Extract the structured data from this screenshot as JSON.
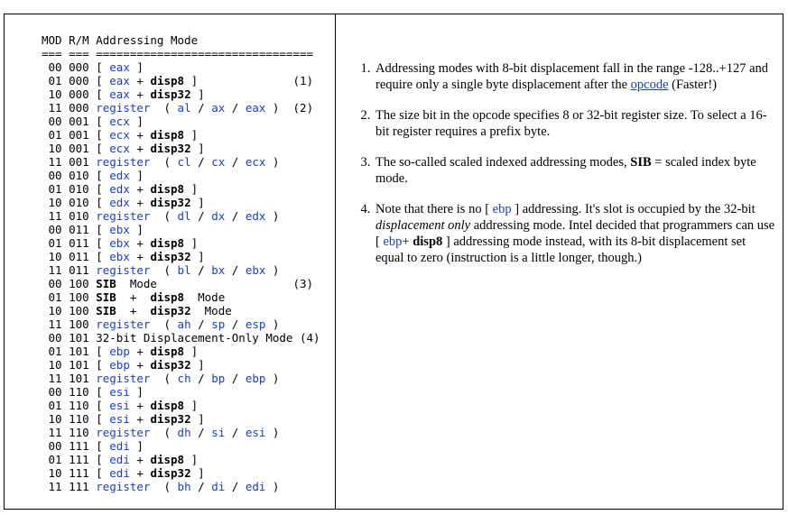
{
  "table": {
    "header": "MOD R/M Addressing Mode",
    "separator": "=== === ================================",
    "rows": [
      {
        "mod": "00",
        "rm": "000",
        "parts": [
          [
            "t",
            "[ "
          ],
          [
            "k",
            "eax"
          ],
          [
            "t",
            " ]"
          ]
        ],
        "note": ""
      },
      {
        "mod": "01",
        "rm": "000",
        "parts": [
          [
            "t",
            "[ "
          ],
          [
            "k",
            "eax"
          ],
          [
            "t",
            " + "
          ],
          [
            "b",
            "disp8"
          ],
          [
            "t",
            " ]"
          ]
        ],
        "note": "(1)"
      },
      {
        "mod": "10",
        "rm": "000",
        "parts": [
          [
            "t",
            "[ "
          ],
          [
            "k",
            "eax"
          ],
          [
            "t",
            " + "
          ],
          [
            "b",
            "disp32"
          ],
          [
            "t",
            " ]"
          ]
        ],
        "note": ""
      },
      {
        "mod": "11",
        "rm": "000",
        "parts": [
          [
            "k",
            "register"
          ],
          [
            "t",
            "  ( "
          ],
          [
            "k",
            "al"
          ],
          [
            "t",
            " / "
          ],
          [
            "k",
            "ax"
          ],
          [
            "t",
            " / "
          ],
          [
            "k",
            "eax"
          ],
          [
            "t",
            " )"
          ]
        ],
        "note": "(2)"
      },
      {
        "mod": "00",
        "rm": "001",
        "parts": [
          [
            "t",
            "[ "
          ],
          [
            "k",
            "ecx"
          ],
          [
            "t",
            " ]"
          ]
        ],
        "note": ""
      },
      {
        "mod": "01",
        "rm": "001",
        "parts": [
          [
            "t",
            "[ "
          ],
          [
            "k",
            "ecx"
          ],
          [
            "t",
            " + "
          ],
          [
            "b",
            "disp8"
          ],
          [
            "t",
            " ]"
          ]
        ],
        "note": ""
      },
      {
        "mod": "10",
        "rm": "001",
        "parts": [
          [
            "t",
            "[ "
          ],
          [
            "k",
            "ecx"
          ],
          [
            "t",
            " + "
          ],
          [
            "b",
            "disp32"
          ],
          [
            "t",
            " ]"
          ]
        ],
        "note": ""
      },
      {
        "mod": "11",
        "rm": "001",
        "parts": [
          [
            "k",
            "register"
          ],
          [
            "t",
            "  ( "
          ],
          [
            "k",
            "cl"
          ],
          [
            "t",
            " / "
          ],
          [
            "k",
            "cx"
          ],
          [
            "t",
            " / "
          ],
          [
            "k",
            "ecx"
          ],
          [
            "t",
            " )"
          ]
        ],
        "note": ""
      },
      {
        "mod": "00",
        "rm": "010",
        "parts": [
          [
            "t",
            "[ "
          ],
          [
            "k",
            "edx"
          ],
          [
            "t",
            " ]"
          ]
        ],
        "note": ""
      },
      {
        "mod": "01",
        "rm": "010",
        "parts": [
          [
            "t",
            "[ "
          ],
          [
            "k",
            "edx"
          ],
          [
            "t",
            " + "
          ],
          [
            "b",
            "disp8"
          ],
          [
            "t",
            " ]"
          ]
        ],
        "note": ""
      },
      {
        "mod": "10",
        "rm": "010",
        "parts": [
          [
            "t",
            "[ "
          ],
          [
            "k",
            "edx"
          ],
          [
            "t",
            " + "
          ],
          [
            "b",
            "disp32"
          ],
          [
            "t",
            " ]"
          ]
        ],
        "note": ""
      },
      {
        "mod": "11",
        "rm": "010",
        "parts": [
          [
            "k",
            "register"
          ],
          [
            "t",
            "  ( "
          ],
          [
            "k",
            "dl"
          ],
          [
            "t",
            " / "
          ],
          [
            "k",
            "dx"
          ],
          [
            "t",
            " / "
          ],
          [
            "k",
            "edx"
          ],
          [
            "t",
            " )"
          ]
        ],
        "note": ""
      },
      {
        "mod": "00",
        "rm": "011",
        "parts": [
          [
            "t",
            "[ "
          ],
          [
            "k",
            "ebx"
          ],
          [
            "t",
            " ]"
          ]
        ],
        "note": ""
      },
      {
        "mod": "01",
        "rm": "011",
        "parts": [
          [
            "t",
            "[ "
          ],
          [
            "k",
            "ebx"
          ],
          [
            "t",
            " + "
          ],
          [
            "b",
            "disp8"
          ],
          [
            "t",
            " ]"
          ]
        ],
        "note": ""
      },
      {
        "mod": "10",
        "rm": "011",
        "parts": [
          [
            "t",
            "[ "
          ],
          [
            "k",
            "ebx"
          ],
          [
            "t",
            " + "
          ],
          [
            "b",
            "disp32"
          ],
          [
            "t",
            " ]"
          ]
        ],
        "note": ""
      },
      {
        "mod": "11",
        "rm": "011",
        "parts": [
          [
            "k",
            "register"
          ],
          [
            "t",
            "  ( "
          ],
          [
            "k",
            "bl"
          ],
          [
            "t",
            " / "
          ],
          [
            "k",
            "bx"
          ],
          [
            "t",
            " / "
          ],
          [
            "k",
            "ebx"
          ],
          [
            "t",
            " )"
          ]
        ],
        "note": ""
      },
      {
        "mod": "00",
        "rm": "100",
        "parts": [
          [
            "b",
            "SIB"
          ],
          [
            "t",
            "  Mode"
          ]
        ],
        "note": "(3)"
      },
      {
        "mod": "01",
        "rm": "100",
        "parts": [
          [
            "b",
            "SIB"
          ],
          [
            "t",
            "  +  "
          ],
          [
            "b",
            "disp8"
          ],
          [
            "t",
            "  Mode"
          ]
        ],
        "note": ""
      },
      {
        "mod": "10",
        "rm": "100",
        "parts": [
          [
            "b",
            "SIB"
          ],
          [
            "t",
            "  +  "
          ],
          [
            "b",
            "disp32"
          ],
          [
            "t",
            "  Mode"
          ]
        ],
        "note": ""
      },
      {
        "mod": "11",
        "rm": "100",
        "parts": [
          [
            "k",
            "register"
          ],
          [
            "t",
            "  ( "
          ],
          [
            "k",
            "ah"
          ],
          [
            "t",
            " / "
          ],
          [
            "k",
            "sp"
          ],
          [
            "t",
            " / "
          ],
          [
            "k",
            "esp"
          ],
          [
            "t",
            " )"
          ]
        ],
        "note": ""
      },
      {
        "mod": "00",
        "rm": "101",
        "parts": [
          [
            "t",
            "32-bit Displacement-Only Mode"
          ]
        ],
        "note": "(4)"
      },
      {
        "mod": "01",
        "rm": "101",
        "parts": [
          [
            "t",
            "[ "
          ],
          [
            "k",
            "ebp"
          ],
          [
            "t",
            " + "
          ],
          [
            "b",
            "disp8"
          ],
          [
            "t",
            " ]"
          ]
        ],
        "note": ""
      },
      {
        "mod": "10",
        "rm": "101",
        "parts": [
          [
            "t",
            "[ "
          ],
          [
            "k",
            "ebp"
          ],
          [
            "t",
            " + "
          ],
          [
            "b",
            "disp32"
          ],
          [
            "t",
            " ]"
          ]
        ],
        "note": ""
      },
      {
        "mod": "11",
        "rm": "101",
        "parts": [
          [
            "k",
            "register"
          ],
          [
            "t",
            "  ( "
          ],
          [
            "k",
            "ch"
          ],
          [
            "t",
            " / "
          ],
          [
            "k",
            "bp"
          ],
          [
            "t",
            " / "
          ],
          [
            "k",
            "ebp"
          ],
          [
            "t",
            " )"
          ]
        ],
        "note": ""
      },
      {
        "mod": "00",
        "rm": "110",
        "parts": [
          [
            "t",
            "[ "
          ],
          [
            "k",
            "esi"
          ],
          [
            "t",
            " ]"
          ]
        ],
        "note": ""
      },
      {
        "mod": "01",
        "rm": "110",
        "parts": [
          [
            "t",
            "[ "
          ],
          [
            "k",
            "esi"
          ],
          [
            "t",
            " + "
          ],
          [
            "b",
            "disp8"
          ],
          [
            "t",
            " ]"
          ]
        ],
        "note": ""
      },
      {
        "mod": "10",
        "rm": "110",
        "parts": [
          [
            "t",
            "[ "
          ],
          [
            "k",
            "esi"
          ],
          [
            "t",
            " + "
          ],
          [
            "b",
            "disp32"
          ],
          [
            "t",
            " ]"
          ]
        ],
        "note": ""
      },
      {
        "mod": "11",
        "rm": "110",
        "parts": [
          [
            "k",
            "register"
          ],
          [
            "t",
            "  ( "
          ],
          [
            "k",
            "dh"
          ],
          [
            "t",
            " / "
          ],
          [
            "k",
            "si"
          ],
          [
            "t",
            " / "
          ],
          [
            "k",
            "esi"
          ],
          [
            "t",
            " )"
          ]
        ],
        "note": ""
      },
      {
        "mod": "00",
        "rm": "111",
        "parts": [
          [
            "t",
            "[ "
          ],
          [
            "k",
            "edi"
          ],
          [
            "t",
            " ]"
          ]
        ],
        "note": ""
      },
      {
        "mod": "01",
        "rm": "111",
        "parts": [
          [
            "t",
            "[ "
          ],
          [
            "k",
            "edi"
          ],
          [
            "t",
            " + "
          ],
          [
            "b",
            "disp8"
          ],
          [
            "t",
            " ]"
          ]
        ],
        "note": ""
      },
      {
        "mod": "10",
        "rm": "111",
        "parts": [
          [
            "t",
            "[ "
          ],
          [
            "k",
            "edi"
          ],
          [
            "t",
            " + "
          ],
          [
            "b",
            "disp32"
          ],
          [
            "t",
            " ]"
          ]
        ],
        "note": ""
      },
      {
        "mod": "11",
        "rm": "111",
        "parts": [
          [
            "k",
            "register"
          ],
          [
            "t",
            "  ( "
          ],
          [
            "k",
            "bh"
          ],
          [
            "t",
            " / "
          ],
          [
            "k",
            "di"
          ],
          [
            "t",
            " / "
          ],
          [
            "k",
            "edi"
          ],
          [
            "t",
            " )"
          ]
        ],
        "note": ""
      }
    ]
  },
  "notes": {
    "n1": {
      "before": "Addressing modes with 8-bit displacement fall in the range -128..+127 and require only a single byte displacement after the ",
      "link": "opcode",
      "after": " (Faster!)"
    },
    "n2": "The size bit in the opcode specifies 8 or 32-bit register size. To select a 16-bit register requires a prefix byte.",
    "n3": {
      "before": "The so-called scaled indexed addressing modes, ",
      "bold": "SIB",
      "after": " = scaled index byte mode."
    },
    "n4": {
      "p1": "Note that there is no [ ",
      "ebp1": "ebp",
      "p2": " ] addressing. It's slot is occupied by the 32-bit ",
      "italic": "displacement only",
      "p3": " addressing mode. Intel decided that programmers can use [ ",
      "ebp2": "ebp",
      "p4": "+ ",
      "bold": "disp8",
      "p5": " ] addressing mode instead, with its 8-bit displacement set equal to zero (instruction is a little longer, though.)"
    }
  },
  "colors": {
    "keyword": "#1a3ccf",
    "text": "#000000",
    "border": "#000000"
  }
}
